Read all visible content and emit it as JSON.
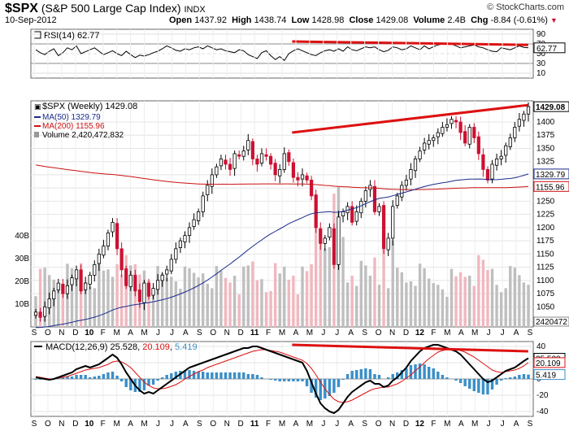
{
  "header": {
    "symbol": "$SPX",
    "name": "(S&P 500 Large Cap Index)",
    "exchange": "INDX",
    "date": "10-Sep-2012",
    "open_label": "Open",
    "open": "1437.92",
    "high_label": "High",
    "high": "1438.74",
    "low_label": "Low",
    "low": "1428.98",
    "close_label": "Close",
    "close": "1429.08",
    "volume_label": "Volume",
    "volume": "2.4B",
    "chg_label": "Chg",
    "chg": "-8.84 (-0.61%)",
    "watermark": "© StockCharts.com"
  },
  "colors": {
    "up": "#000000",
    "down": "#cc1133",
    "ma50": "#1a2a8a",
    "ma200": "#cc1111",
    "trend": "#dd1111",
    "vol_up": "#bfbfbf",
    "vol_down": "#f0b8bf",
    "macd_hist": "#3a8fc8"
  },
  "chart_data": [
    {
      "type": "line",
      "panel": "rsi",
      "legend": "RSI(14) 62.77",
      "current_label": "62.77",
      "ylim": [
        0,
        100
      ],
      "y_ticks": [
        90,
        70,
        50,
        30,
        10
      ],
      "values": [
        58,
        52,
        48,
        55,
        60,
        46,
        52,
        62,
        58,
        66,
        50,
        54,
        58,
        62,
        55,
        48,
        52,
        56,
        50,
        46,
        55,
        48,
        42,
        47,
        45,
        48,
        52,
        55,
        60,
        66,
        62,
        57,
        55,
        60,
        58,
        62,
        64,
        60,
        66,
        62,
        58,
        60,
        56,
        54,
        52,
        58,
        56,
        48,
        44,
        40,
        52,
        56,
        46,
        38,
        44,
        36,
        50,
        56,
        60,
        56,
        52,
        48,
        46,
        52,
        56,
        58,
        55,
        60,
        55,
        64,
        58,
        56,
        60,
        64,
        62,
        64,
        58,
        54,
        57,
        64,
        62,
        58,
        60,
        66,
        62,
        58,
        66,
        60,
        64,
        68,
        70,
        71,
        70,
        66,
        62,
        64,
        66,
        68,
        64,
        62,
        58,
        55,
        54,
        62,
        60,
        58,
        62,
        66,
        63,
        62
      ],
      "trend": [
        {
          "from": [
            0.52,
            75
          ],
          "to": [
            0.99,
            68
          ]
        }
      ]
    },
    {
      "type": "candlestick",
      "panel": "price",
      "legend": {
        "title": "$SPX (Weekly) 1429.08",
        "ma50": "MA(50) 1329.79",
        "ma200": "MA(200) 1155.96",
        "volume": "Volume 2,420,472,832"
      },
      "ylim": [
        1012,
        1440
      ],
      "y_ticks": [
        1400,
        1375,
        1350,
        1325,
        1300,
        1275,
        1250,
        1225,
        1200,
        1175,
        1150,
        1125,
        1100,
        1075,
        1050,
        1025
      ],
      "price_labels": [
        "1429.08",
        "1329.79",
        "1155.96"
      ],
      "volume_ticks": [
        "40B",
        "30B",
        "20B",
        "10B"
      ],
      "volume_label": "2420472",
      "volume_max": 50,
      "x_labels": [
        "S",
        "O",
        "N",
        "D",
        "10",
        "F",
        "M",
        "A",
        "M",
        "J",
        "J",
        "A",
        "S",
        "O",
        "N",
        "D",
        "11",
        "F",
        "M",
        "A",
        "M",
        "J",
        "J",
        "A",
        "S",
        "O",
        "N",
        "D",
        "12",
        "F",
        "M",
        "A",
        "M",
        "J",
        "J",
        "A",
        "S"
      ],
      "close": [
        1040,
        1030,
        1050,
        1065,
        1080,
        1095,
        1075,
        1090,
        1105,
        1120,
        1080,
        1095,
        1110,
        1130,
        1150,
        1165,
        1190,
        1210,
        1160,
        1120,
        1090,
        1110,
        1080,
        1060,
        1095,
        1070,
        1085,
        1100,
        1110,
        1120,
        1140,
        1160,
        1175,
        1185,
        1200,
        1215,
        1230,
        1260,
        1280,
        1300,
        1315,
        1330,
        1320,
        1310,
        1340,
        1335,
        1345,
        1365,
        1330,
        1320,
        1340,
        1335,
        1320,
        1300,
        1310,
        1340,
        1325,
        1295,
        1290,
        1300,
        1290,
        1260,
        1200,
        1170,
        1180,
        1200,
        1130,
        1220,
        1230,
        1240,
        1210,
        1230,
        1250,
        1270,
        1280,
        1230,
        1240,
        1160,
        1180,
        1240,
        1260,
        1280,
        1290,
        1310,
        1330,
        1345,
        1360,
        1365,
        1370,
        1380,
        1390,
        1395,
        1405,
        1400,
        1380,
        1360,
        1390,
        1370,
        1340,
        1310,
        1290,
        1320,
        1330,
        1335,
        1355,
        1370,
        1390,
        1405,
        1415,
        1429
      ],
      "ma50": "computed from close",
      "ma200": "computed from close",
      "trend": [
        {
          "from": [
            0.52,
            1380
          ],
          "to": [
            0.99,
            1432
          ]
        }
      ]
    },
    {
      "type": "line",
      "panel": "macd",
      "legend": "MACD(12,26,9) 25.528, 20.109, 5.419",
      "legend_parts": [
        "MACD(12,26,9) ",
        "25.528",
        ", ",
        "20.109",
        ", ",
        "5.419"
      ],
      "current_labels": [
        "25.528",
        "20.109",
        "5.419"
      ],
      "ylim": [
        -46,
        46
      ],
      "y_ticks": [
        40,
        20,
        0,
        -20,
        -40
      ],
      "series": [
        {
          "name": "macd",
          "values": [
            2,
            1,
            0,
            -1,
            0,
            2,
            4,
            6,
            8,
            12,
            14,
            16,
            14,
            16,
            18,
            22,
            26,
            30,
            26,
            18,
            8,
            0,
            -8,
            -14,
            -18,
            -16,
            -18,
            -14,
            -10,
            -6,
            -2,
            2,
            6,
            10,
            14,
            16,
            18,
            20,
            22,
            24,
            26,
            28,
            30,
            32,
            34,
            36,
            38,
            38,
            40,
            40,
            38,
            36,
            34,
            32,
            30,
            28,
            26,
            24,
            22,
            20,
            10,
            -4,
            -18,
            -30,
            -36,
            -40,
            -42,
            -38,
            -30,
            -22,
            -16,
            -12,
            -8,
            -4,
            -2,
            -6,
            -6,
            -10,
            -8,
            -2,
            2,
            8,
            14,
            22,
            28,
            34,
            38,
            40,
            42,
            42,
            40,
            38,
            36,
            34,
            30,
            24,
            18,
            12,
            6,
            0,
            -4,
            -2,
            2,
            6,
            10,
            12,
            14,
            18,
            22,
            25.5
          ]
        },
        {
          "name": "signal",
          "values": [
            3,
            2,
            1,
            0,
            0,
            1,
            2,
            3,
            5,
            7,
            9,
            11,
            12,
            13,
            14,
            16,
            18,
            21,
            22,
            21,
            18,
            14,
            8,
            2,
            -4,
            -8,
            -11,
            -12,
            -12,
            -11,
            -9,
            -7,
            -4,
            0,
            3,
            6,
            9,
            11,
            14,
            16,
            18,
            20,
            22,
            24,
            26,
            28,
            30,
            32,
            34,
            35,
            36,
            36,
            35,
            34,
            33,
            31,
            29,
            27,
            25,
            23,
            19,
            13,
            5,
            -4,
            -12,
            -19,
            -25,
            -28,
            -29,
            -28,
            -26,
            -23,
            -20,
            -17,
            -14,
            -12,
            -11,
            -10,
            -10,
            -8,
            -6,
            -3,
            1,
            5,
            10,
            15,
            20,
            25,
            29,
            33,
            35,
            36,
            36,
            36,
            35,
            33,
            30,
            27,
            23,
            19,
            15,
            11,
            9,
            8,
            9,
            10,
            11,
            13,
            16,
            20.1
          ]
        }
      ],
      "histogram": "macd minus signal",
      "trend": [
        {
          "from": [
            0.52,
            42
          ],
          "to": [
            0.99,
            34
          ]
        }
      ]
    }
  ]
}
